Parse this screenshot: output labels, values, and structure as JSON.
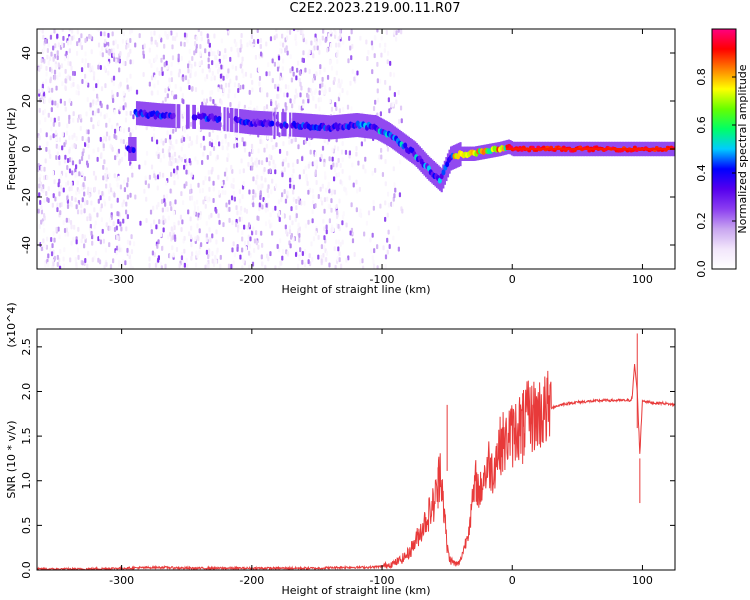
{
  "title": "C2E2.2023.219.00.11.R07",
  "chart_data": [
    {
      "type": "heatmap",
      "title": "C2E2.2023.219.00.11.R07",
      "xlabel": "Height of straight line (km)",
      "ylabel": "Frequency (Hz)",
      "xlim": [
        -365,
        125
      ],
      "ylim": [
        -50,
        50
      ],
      "xticks": [
        -300,
        -200,
        -100,
        0,
        100
      ],
      "yticks": [
        -40,
        -20,
        0,
        20,
        40
      ],
      "colorbar": {
        "label": "Normalized spectral amplitude",
        "range": [
          0,
          1
        ],
        "ticks": [
          0.0,
          0.2,
          0.4,
          0.6,
          0.8
        ],
        "colormap": [
          "#ffffff",
          "#f2e6fb",
          "#c9a6f0",
          "#8b3ef0",
          "#5500ee",
          "#0000ff",
          "#00ccff",
          "#00ff66",
          "#66ff00",
          "#ffff00",
          "#ff8000",
          "#ff0000",
          "#ff0080"
        ]
      },
      "ridge": {
        "x": [
          -290,
          -270,
          -230,
          -200,
          -165,
          -140,
          -120,
          -105,
          -95,
          -85,
          -75,
          -65,
          -55,
          -48,
          -40,
          -30,
          -20,
          -10,
          -3,
          0,
          10,
          50,
          100,
          125
        ],
        "y": [
          15,
          14,
          13,
          11,
          10,
          9,
          10,
          9,
          6,
          2,
          -2,
          -8,
          -13,
          -4,
          -2,
          -2,
          -1,
          0,
          1,
          0,
          0,
          0,
          0,
          0
        ]
      },
      "noise_extent_km": [
        -365,
        -100
      ],
      "noise_gap_km": [
        -292,
        -280
      ]
    },
    {
      "type": "line",
      "xlabel": "Height of straight line (km)",
      "ylabel": "SNR (10 * v/v)",
      "multiplier": "(x10^4)",
      "xlim": [
        -365,
        125
      ],
      "ylim": [
        0,
        2.7
      ],
      "xticks": [
        -300,
        -200,
        -100,
        0,
        100
      ],
      "yticks": [
        0.0,
        0.5,
        1.0,
        1.5,
        2.0,
        2.5
      ],
      "color": "#e83a3a",
      "x": [
        -365,
        -330,
        -300,
        -270,
        -250,
        -220,
        -200,
        -170,
        -150,
        -130,
        -110,
        -100,
        -95,
        -90,
        -85,
        -80,
        -75,
        -70,
        -65,
        -60,
        -57,
        -55,
        -52,
        -50,
        -48,
        -45,
        -42,
        -40,
        -38,
        -35,
        -32,
        -30,
        -28,
        -25,
        -22,
        -20,
        -18,
        -15,
        -12,
        -10,
        -8,
        -5,
        -3,
        0,
        3,
        5,
        8,
        10,
        12,
        15,
        20,
        25,
        30,
        35,
        40,
        50,
        60,
        70,
        80,
        90,
        92,
        94,
        96,
        98,
        100,
        105,
        110,
        115,
        120,
        125
      ],
      "y": [
        0.01,
        0.01,
        0.02,
        0.03,
        0.02,
        0.02,
        0.02,
        0.02,
        0.02,
        0.03,
        0.03,
        0.04,
        0.06,
        0.08,
        0.12,
        0.18,
        0.3,
        0.45,
        0.6,
        0.75,
        0.95,
        1.2,
        0.6,
        0.25,
        0.12,
        0.08,
        0.06,
        0.1,
        0.2,
        0.35,
        0.6,
        0.8,
        1.0,
        0.85,
        1.05,
        1.1,
        1.2,
        1.1,
        1.3,
        1.35,
        1.45,
        1.4,
        1.55,
        1.5,
        1.58,
        1.62,
        1.6,
        1.68,
        1.7,
        1.72,
        1.75,
        1.78,
        1.82,
        1.84,
        1.86,
        1.88,
        1.89,
        1.9,
        1.9,
        1.9,
        1.92,
        2.3,
        2.0,
        1.3,
        1.9,
        1.88,
        1.87,
        1.87,
        1.86,
        1.85
      ]
    }
  ]
}
